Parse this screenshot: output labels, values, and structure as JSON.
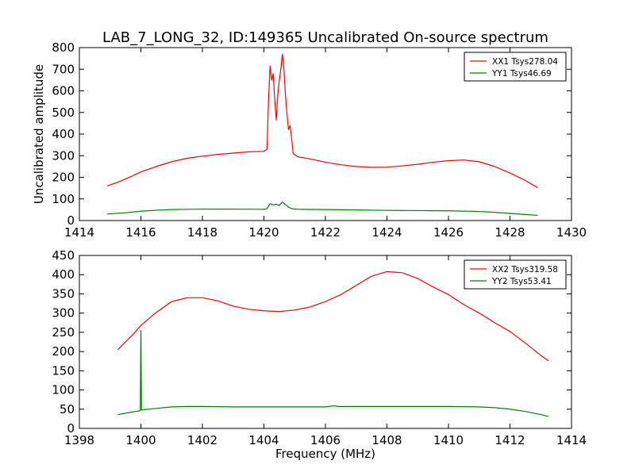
{
  "figure": {
    "title": "LAB_7_LONG_32, ID:149365 Uncalibrated On-source spectrum"
  },
  "chart_data": [
    {
      "type": "line",
      "title": "LAB_7_LONG_32, ID:149365 Uncalibrated On-source spectrum",
      "xlabel": "",
      "ylabel": "Uncalibrated amplitude",
      "xlim": [
        1414,
        1430
      ],
      "ylim": [
        0,
        800
      ],
      "xticks": [
        1414,
        1416,
        1418,
        1420,
        1422,
        1424,
        1426,
        1428,
        1430
      ],
      "yticks": [
        0,
        100,
        200,
        300,
        400,
        500,
        600,
        700,
        800
      ],
      "grid": false,
      "legend_position": "top-right",
      "series": [
        {
          "name": "XX1 Tsys278.04",
          "color": "#ff0000",
          "points": [
            [
              1414.9,
              160
            ],
            [
              1415.3,
              180
            ],
            [
              1415.7,
              205
            ],
            [
              1416.0,
              225
            ],
            [
              1416.5,
              250
            ],
            [
              1417.0,
              272
            ],
            [
              1417.5,
              288
            ],
            [
              1418.0,
              298
            ],
            [
              1418.5,
              306
            ],
            [
              1419.0,
              312
            ],
            [
              1419.5,
              318
            ],
            [
              1420.0,
              320
            ],
            [
              1420.1,
              330
            ],
            [
              1420.15,
              560
            ],
            [
              1420.2,
              715
            ],
            [
              1420.25,
              650
            ],
            [
              1420.3,
              680
            ],
            [
              1420.35,
              560
            ],
            [
              1420.4,
              465
            ],
            [
              1420.45,
              580
            ],
            [
              1420.5,
              650
            ],
            [
              1420.55,
              700
            ],
            [
              1420.6,
              770
            ],
            [
              1420.65,
              700
            ],
            [
              1420.7,
              580
            ],
            [
              1420.75,
              490
            ],
            [
              1420.8,
              420
            ],
            [
              1420.85,
              440
            ],
            [
              1420.9,
              380
            ],
            [
              1420.95,
              310
            ],
            [
              1421.1,
              295
            ],
            [
              1421.5,
              285
            ],
            [
              1422.0,
              270
            ],
            [
              1422.5,
              258
            ],
            [
              1423.0,
              250
            ],
            [
              1423.5,
              246
            ],
            [
              1424.0,
              247
            ],
            [
              1424.5,
              253
            ],
            [
              1425.0,
              260
            ],
            [
              1425.5,
              270
            ],
            [
              1426.0,
              277
            ],
            [
              1426.5,
              280
            ],
            [
              1427.0,
              272
            ],
            [
              1427.5,
              250
            ],
            [
              1428.0,
              220
            ],
            [
              1428.5,
              185
            ],
            [
              1428.9,
              152
            ]
          ]
        },
        {
          "name": "YY1 Tsys46.69",
          "color": "#008000",
          "points": [
            [
              1414.9,
              30
            ],
            [
              1415.5,
              36
            ],
            [
              1416.0,
              43
            ],
            [
              1416.5,
              48
            ],
            [
              1417.0,
              51
            ],
            [
              1417.5,
              52
            ],
            [
              1418.0,
              53
            ],
            [
              1419.0,
              53
            ],
            [
              1420.0,
              52
            ],
            [
              1420.1,
              55
            ],
            [
              1420.2,
              78
            ],
            [
              1420.3,
              72
            ],
            [
              1420.4,
              76
            ],
            [
              1420.5,
              70
            ],
            [
              1420.6,
              86
            ],
            [
              1420.7,
              74
            ],
            [
              1420.8,
              62
            ],
            [
              1420.9,
              55
            ],
            [
              1421.1,
              52
            ],
            [
              1422.0,
              51
            ],
            [
              1423.0,
              49
            ],
            [
              1424.0,
              47
            ],
            [
              1425.0,
              46
            ],
            [
              1426.0,
              45
            ],
            [
              1427.0,
              42
            ],
            [
              1427.5,
              38
            ],
            [
              1428.0,
              33
            ],
            [
              1428.5,
              28
            ],
            [
              1428.9,
              24
            ]
          ]
        }
      ]
    },
    {
      "type": "line",
      "title": "",
      "xlabel": "Frequency (MHz)",
      "ylabel": "",
      "xlim": [
        1398,
        1414
      ],
      "ylim": [
        0,
        450
      ],
      "xticks": [
        1398,
        1400,
        1402,
        1404,
        1406,
        1408,
        1410,
        1412,
        1414
      ],
      "yticks": [
        0,
        50,
        100,
        150,
        200,
        250,
        300,
        350,
        400,
        450
      ],
      "grid": false,
      "legend_position": "top-right",
      "series": [
        {
          "name": "XX2 Tsys319.58",
          "color": "#ff0000",
          "points": [
            [
              1399.25,
              205
            ],
            [
              1399.5,
              225
            ],
            [
              1399.75,
              245
            ],
            [
              1400.0,
              268
            ],
            [
              1400.5,
              302
            ],
            [
              1401.0,
              330
            ],
            [
              1401.5,
              340
            ],
            [
              1402.0,
              340
            ],
            [
              1402.5,
              332
            ],
            [
              1403.0,
              318
            ],
            [
              1403.5,
              310
            ],
            [
              1404.0,
              306
            ],
            [
              1404.5,
              304
            ],
            [
              1405.0,
              308
            ],
            [
              1405.5,
              316
            ],
            [
              1406.0,
              330
            ],
            [
              1406.5,
              348
            ],
            [
              1407.0,
              372
            ],
            [
              1407.5,
              396
            ],
            [
              1408.0,
              408
            ],
            [
              1408.5,
              405
            ],
            [
              1409.0,
              390
            ],
            [
              1409.5,
              368
            ],
            [
              1410.0,
              348
            ],
            [
              1410.5,
              322
            ],
            [
              1411.0,
              300
            ],
            [
              1411.5,
              275
            ],
            [
              1412.0,
              252
            ],
            [
              1412.5,
              222
            ],
            [
              1413.0,
              190
            ],
            [
              1413.25,
              176
            ]
          ]
        },
        {
          "name": "YY2 Tsys53.41",
          "color": "#008000",
          "points": [
            [
              1399.25,
              36
            ],
            [
              1399.6,
              41
            ],
            [
              1399.98,
              46
            ],
            [
              1400.0,
              255
            ],
            [
              1400.02,
              48
            ],
            [
              1400.5,
              52
            ],
            [
              1401.0,
              56
            ],
            [
              1401.5,
              57
            ],
            [
              1402.0,
              57
            ],
            [
              1403.0,
              56
            ],
            [
              1404.0,
              56
            ],
            [
              1405.0,
              56
            ],
            [
              1406.0,
              56
            ],
            [
              1406.3,
              59
            ],
            [
              1406.4,
              57
            ],
            [
              1407.0,
              57
            ],
            [
              1408.0,
              57
            ],
            [
              1409.0,
              57
            ],
            [
              1410.0,
              57
            ],
            [
              1411.0,
              56
            ],
            [
              1411.5,
              54
            ],
            [
              1412.0,
              50
            ],
            [
              1412.5,
              44
            ],
            [
              1413.0,
              36
            ],
            [
              1413.25,
              31
            ]
          ]
        }
      ]
    }
  ]
}
